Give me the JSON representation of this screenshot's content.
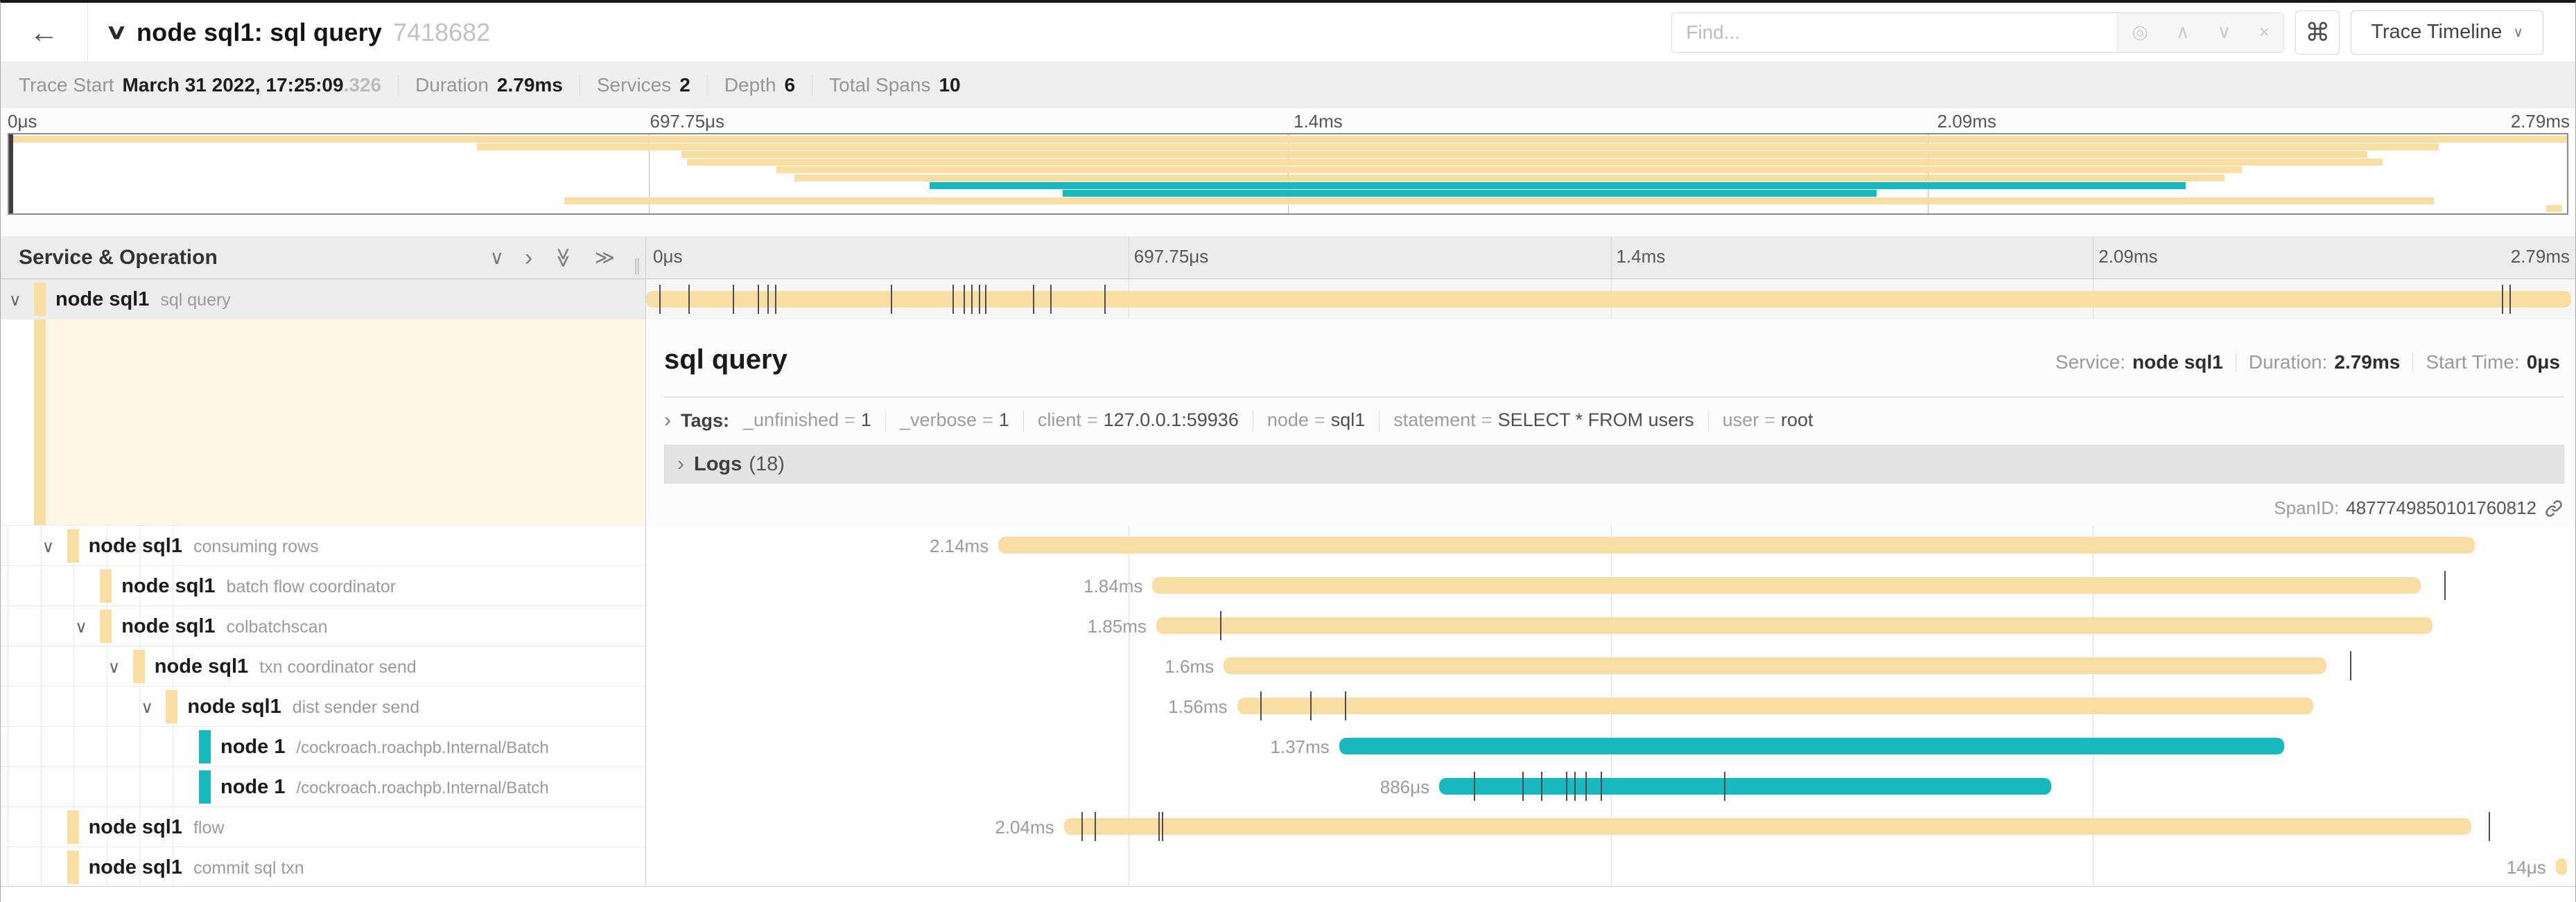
{
  "colors": {
    "yellow": "#F8DDA4",
    "teal": "#17B8BE",
    "cream": "#FDF6E4"
  },
  "header": {
    "back_icon": "←",
    "collapse_icon": "∨",
    "title": "node sql1: sql query",
    "trace_id": "7418682",
    "find_placeholder": "Find...",
    "find_icons": {
      "target": "◎",
      "prev": "∧",
      "next": "∨",
      "clear": "×"
    },
    "shortcut": "⌘",
    "view_button": "Trace Timeline",
    "view_caret": "∨"
  },
  "trace_meta": [
    {
      "label": "Trace Start",
      "value": "March 31 2022, 17:25:09",
      "muted": ".326"
    },
    {
      "label": "Duration",
      "value": "2.79ms"
    },
    {
      "label": "Services",
      "value": "2"
    },
    {
      "label": "Depth",
      "value": "6"
    },
    {
      "label": "Total Spans",
      "value": "10"
    }
  ],
  "ruler": [
    {
      "label": "0μs",
      "pct": 0
    },
    {
      "label": "697.75μs",
      "pct": 25
    },
    {
      "label": "1.4ms",
      "pct": 50
    },
    {
      "label": "2.09ms",
      "pct": 75
    },
    {
      "label": "2.79ms",
      "pct": 100
    }
  ],
  "timeline": {
    "column_title": "Service & Operation",
    "collapse_one": "∨",
    "expand_one": "›",
    "chevrons_all": "≫",
    "grip": "∥"
  },
  "spans": [
    {
      "service": "node sql1",
      "operation": "sql query",
      "depth": 0,
      "caret": true,
      "color": "yellow",
      "bar": {
        "start": 0,
        "width": 100,
        "label": ""
      },
      "ticks": [
        0.7,
        2.2,
        4.5,
        5.8,
        6.3,
        6.7,
        12.7,
        15.9,
        16.5,
        16.9,
        17.3,
        17.6,
        20.1,
        21.0,
        23.8,
        96.4,
        96.8
      ]
    },
    {
      "service": "node sql1",
      "operation": "consuming rows",
      "depth": 1,
      "caret": true,
      "color": "yellow",
      "bar": {
        "start": 18.3,
        "width": 76.7,
        "label": "2.14ms"
      },
      "ticks": []
    },
    {
      "service": "node sql1",
      "operation": "batch flow coordinator",
      "depth": 2,
      "caret": false,
      "color": "yellow",
      "bar": {
        "start": 26.3,
        "width": 65.9,
        "label": "1.84ms"
      },
      "ticks": [
        93.4
      ]
    },
    {
      "service": "node sql1",
      "operation": "colbatchscan",
      "depth": 2,
      "caret": true,
      "color": "yellow",
      "bar": {
        "start": 26.5,
        "width": 66.3,
        "label": "1.85ms"
      },
      "ticks": [
        29.8
      ]
    },
    {
      "service": "node sql1",
      "operation": "txn coordinator send",
      "depth": 3,
      "caret": true,
      "color": "yellow",
      "bar": {
        "start": 30.0,
        "width": 57.3,
        "label": "1.6ms"
      },
      "ticks": [
        88.5
      ]
    },
    {
      "service": "node sql1",
      "operation": "dist sender send",
      "depth": 4,
      "caret": true,
      "color": "yellow",
      "bar": {
        "start": 30.7,
        "width": 55.9,
        "label": "1.56ms"
      },
      "ticks": [
        31.9,
        34.5,
        36.3
      ]
    },
    {
      "service": "node 1",
      "operation": "/cockroach.roachpb.Internal/Batch",
      "depth": 5,
      "caret": false,
      "color": "teal",
      "bar": {
        "start": 36.0,
        "width": 49.1,
        "label": "1.37ms"
      },
      "ticks": []
    },
    {
      "service": "node 1",
      "operation": "/cockroach.roachpb.Internal/Batch",
      "depth": 5,
      "caret": false,
      "color": "teal",
      "bar": {
        "start": 41.2,
        "width": 31.8,
        "label": "886μs"
      },
      "ticks": [
        43.0,
        45.5,
        46.5,
        47.8,
        48.2,
        48.8,
        49.6,
        56.0
      ]
    },
    {
      "service": "node sql1",
      "operation": "flow",
      "depth": 1,
      "caret": false,
      "color": "yellow",
      "bar": {
        "start": 21.7,
        "width": 73.1,
        "label": "2.04ms"
      },
      "ticks": [
        22.6,
        23.3,
        26.6,
        26.8,
        95.7
      ]
    },
    {
      "service": "node sql1",
      "operation": "commit sql txn",
      "depth": 1,
      "caret": false,
      "color": "yellow",
      "bar": {
        "start": 99.2,
        "width": 0.6,
        "label": "14μs"
      },
      "ticks": []
    }
  ],
  "detail": {
    "title": "sql query",
    "service_label": "Service:",
    "service": "node sql1",
    "duration_label": "Duration:",
    "duration": "2.79ms",
    "start_label": "Start Time:",
    "start": "0μs",
    "tags_label": "Tags:",
    "tags": [
      {
        "key": "_unfinished",
        "value": "1"
      },
      {
        "key": "_verbose",
        "value": "1"
      },
      {
        "key": "client",
        "value": "127.0.0.1:59936"
      },
      {
        "key": "node",
        "value": "sql1"
      },
      {
        "key": "statement",
        "value": "SELECT * FROM users"
      },
      {
        "key": "user",
        "value": "root"
      }
    ],
    "logs_label": "Logs",
    "logs_count": "(18)",
    "spanid_label": "SpanID:",
    "spanid": "4877749850101760812"
  }
}
